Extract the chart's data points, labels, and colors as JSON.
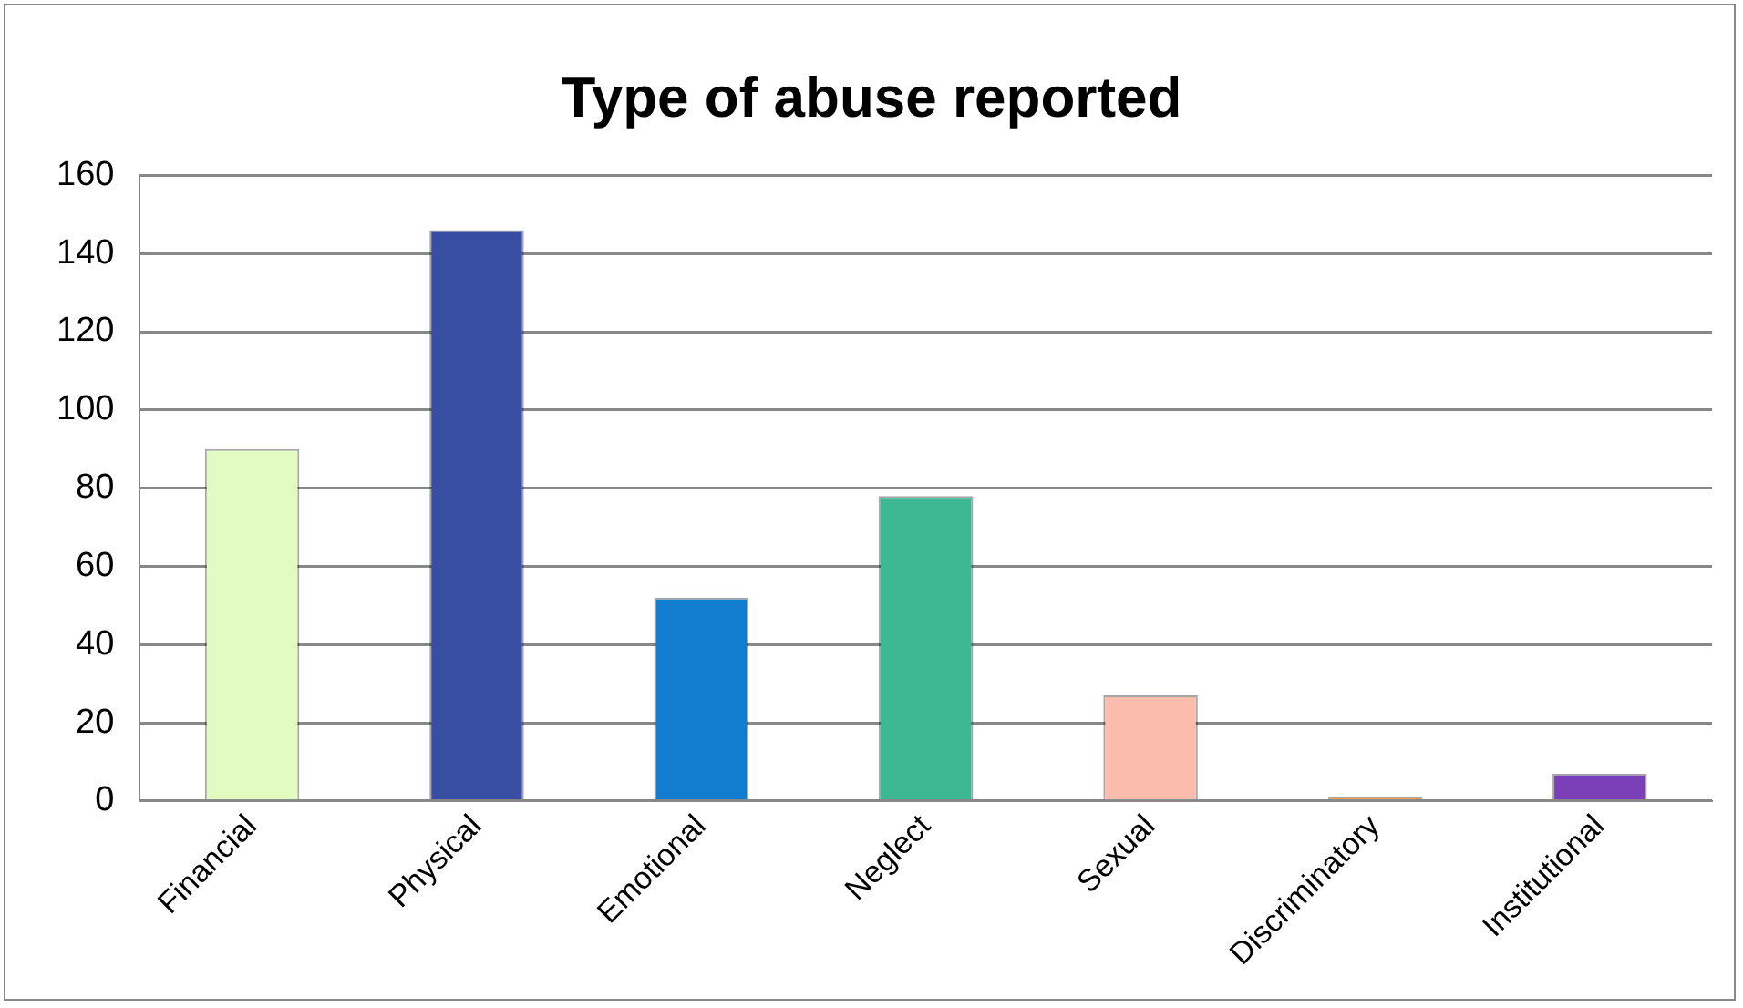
{
  "chart_data": {
    "type": "bar",
    "title": "Type of abuse reported",
    "categories": [
      "Financial",
      "Physical",
      "Emotional",
      "Neglect",
      "Sexual",
      "Discriminatory",
      "Institutional"
    ],
    "values": [
      90,
      146,
      52,
      78,
      27,
      1,
      7
    ],
    "colors": [
      "#e2fbc0",
      "#374ea3",
      "#127ccf",
      "#3db893",
      "#fbbcae",
      "#f0a050",
      "#7b3fb8"
    ],
    "ylim": [
      0,
      160
    ],
    "yticks": [
      0,
      20,
      40,
      60,
      80,
      100,
      120,
      140,
      160
    ],
    "grid": "y",
    "legend": false
  }
}
